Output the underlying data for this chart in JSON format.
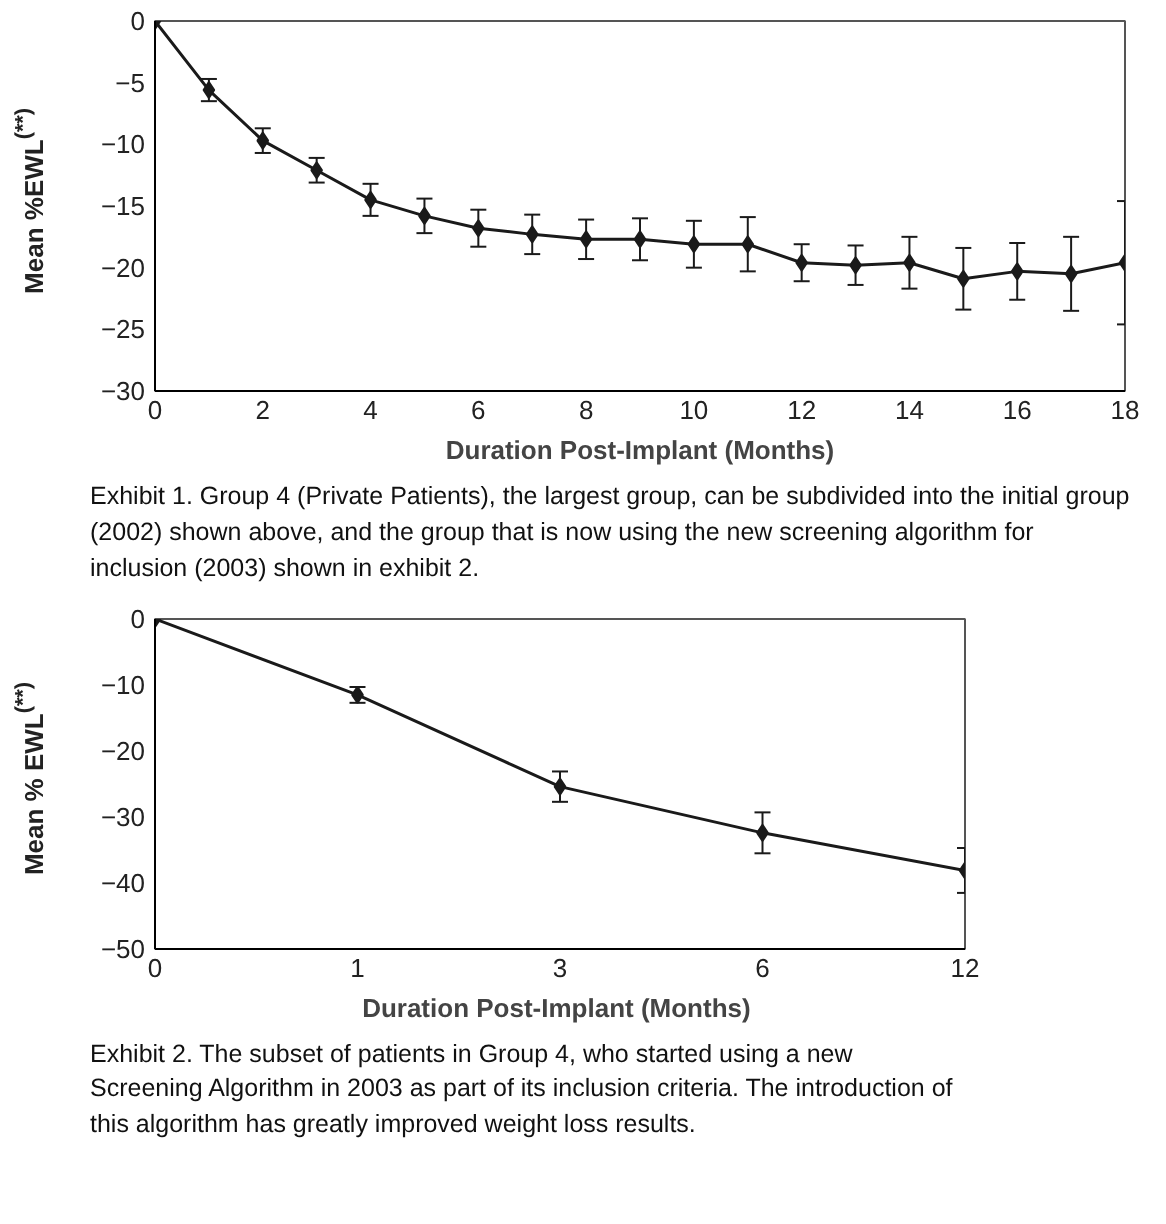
{
  "chart_data": [
    {
      "type": "line",
      "xlabel": "Duration Post-Implant (Months)",
      "ylabel": "Mean %EWL$^{(**)}$",
      "x": [
        0,
        1,
        2,
        3,
        4,
        5,
        6,
        7,
        8,
        9,
        10,
        11,
        12,
        13,
        14,
        15,
        16,
        17,
        18
      ],
      "series": [
        {
          "color": "#1a1a1a",
          "values": [
            0,
            -5.6,
            -9.7,
            -12.1,
            -14.5,
            -15.8,
            -16.8,
            -17.3,
            -17.7,
            -17.7,
            -18.1,
            -18.1,
            -19.6,
            -19.8,
            -19.6,
            -20.9,
            -20.3,
            -20.5,
            -19.6
          ],
          "errors": [
            null,
            0.9,
            1.0,
            1.0,
            1.3,
            1.4,
            1.5,
            1.6,
            1.6,
            1.7,
            1.9,
            2.2,
            1.5,
            1.6,
            2.1,
            2.5,
            2.3,
            3.0,
            5.0
          ]
        }
      ],
      "xlim": [
        0,
        18
      ],
      "xticks": [
        0,
        2,
        4,
        6,
        8,
        10,
        12,
        14,
        16,
        18
      ],
      "ylim": [
        -30,
        0
      ],
      "yticks": [
        0,
        -5,
        -10,
        -15,
        -20,
        -25,
        -30
      ],
      "marker": "diamond",
      "line_style": "solid",
      "grid": false,
      "annotations": [
        "Exhibit 1. Group 4 (Private Patients), the largest group, can be subdivided into the initial group (2002) shown above, and the group that is now using the new screening algorithm for inclusion (2003) shown in exhibit 2."
      ]
    },
    {
      "type": "line",
      "xlabel": "Duration Post-Implant  (Months)",
      "ylabel": "Mean % EWL$^{(**)}$",
      "categories": [
        "0",
        "1",
        "3",
        "6",
        "12"
      ],
      "series": [
        {
          "color": "#1a1a1a",
          "values": [
            0,
            -11.5,
            -25.4,
            -32.4,
            -38.1
          ],
          "errors": [
            null,
            1.2,
            2.3,
            3.1,
            3.4
          ]
        }
      ],
      "ylim": [
        -50,
        0
      ],
      "yticks": [
        0,
        -10,
        -20,
        -30,
        -40,
        -50
      ],
      "marker": "diamond",
      "line_style": "solid",
      "grid": false,
      "annotations": [
        "Exhibit 2. The subset of patients in Group 4, who started using a new Screening Algorithm in 2003 as part of its inclusion criteria. The introduction of this algorithm has greatly improved weight loss results."
      ]
    }
  ]
}
